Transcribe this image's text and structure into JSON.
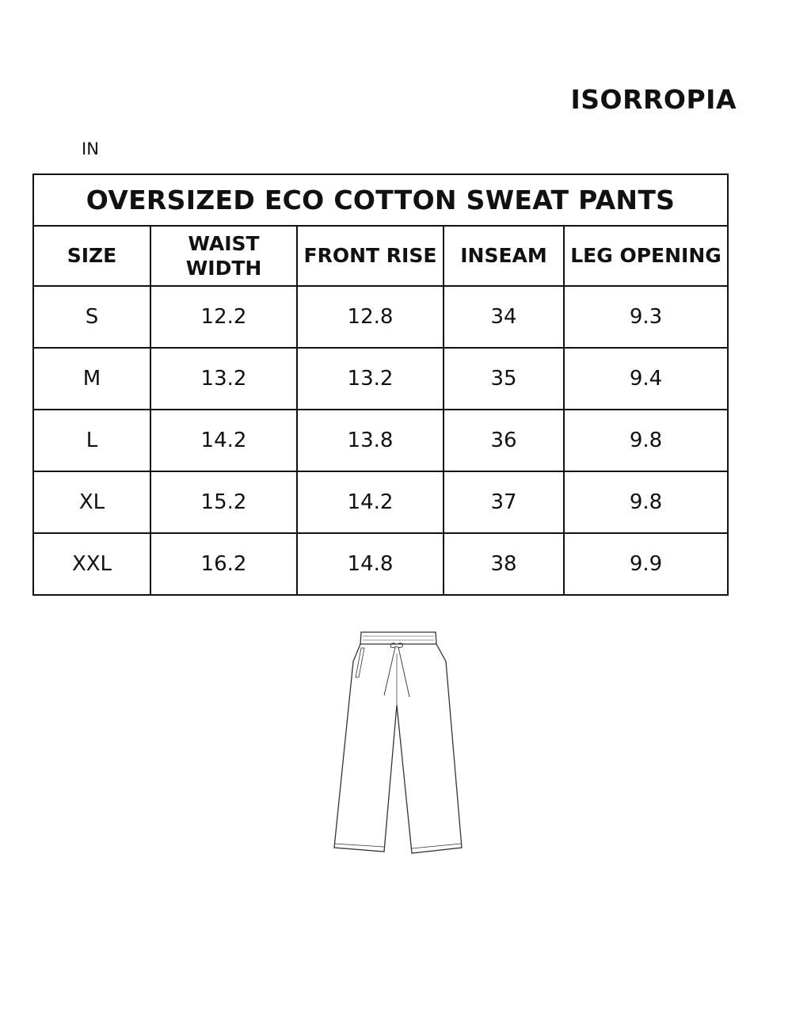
{
  "brand": "ISORROPIA",
  "unit": "IN",
  "table": {
    "title": "OVERSIZED ECO COTTON SWEAT PANTS",
    "headers": [
      "SIZE",
      "WAIST WIDTH",
      "FRONT RISE",
      "INSEAM",
      "LEG OPENING"
    ],
    "rows": [
      [
        "S",
        "12.2",
        "12.8",
        "34",
        "9.3"
      ],
      [
        "M",
        "13.2",
        "13.2",
        "35",
        "9.4"
      ],
      [
        "L",
        "14.2",
        "13.8",
        "36",
        "9.8"
      ],
      [
        "XL",
        "15.2",
        "14.2",
        "37",
        "9.8"
      ],
      [
        "XXL",
        "16.2",
        "14.8",
        "38",
        "9.9"
      ]
    ]
  },
  "illustration": "sweatpants-flat-sketch"
}
